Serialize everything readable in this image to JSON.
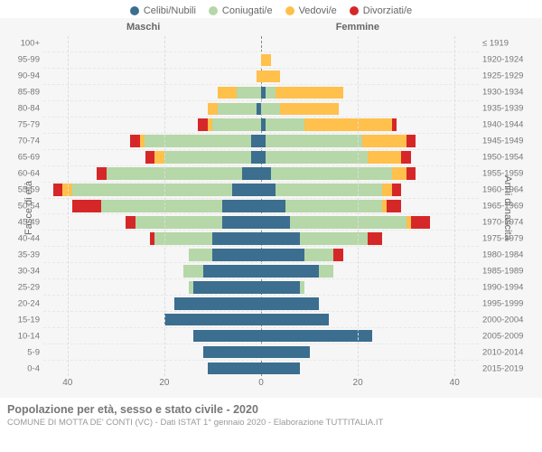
{
  "legend": [
    {
      "label": "Celibi/Nubili",
      "color": "#3b6e8f"
    },
    {
      "label": "Coniugati/e",
      "color": "#b6d7a8"
    },
    {
      "label": "Vedovi/e",
      "color": "#ffc04c"
    },
    {
      "label": "Divorziati/e",
      "color": "#d62728"
    }
  ],
  "side_titles": {
    "male": "Maschi",
    "female": "Femmine"
  },
  "axis_labels": {
    "left": "Fasce di età",
    "right": "Anni di nascita"
  },
  "x_axis": {
    "max": 45,
    "ticks": [
      40,
      20,
      0,
      20,
      40
    ]
  },
  "colors": {
    "background": "#f6f6f6",
    "grid": "#e8e8e8",
    "center_line": "#888",
    "text": "#777"
  },
  "bar_style": {
    "height_pct": 80
  },
  "rows": [
    {
      "age": "100+",
      "birth": "≤ 1919",
      "m": [
        0,
        0,
        0,
        0
      ],
      "f": [
        0,
        0,
        0,
        0
      ]
    },
    {
      "age": "95-99",
      "birth": "1920-1924",
      "m": [
        0,
        0,
        0,
        0
      ],
      "f": [
        0,
        0,
        2,
        0
      ]
    },
    {
      "age": "90-94",
      "birth": "1925-1929",
      "m": [
        0,
        0,
        1,
        0
      ],
      "f": [
        0,
        0,
        4,
        0
      ]
    },
    {
      "age": "85-89",
      "birth": "1930-1934",
      "m": [
        0,
        5,
        4,
        0
      ],
      "f": [
        1,
        2,
        14,
        0
      ]
    },
    {
      "age": "80-84",
      "birth": "1935-1939",
      "m": [
        1,
        8,
        2,
        0
      ],
      "f": [
        0,
        4,
        12,
        0
      ]
    },
    {
      "age": "75-79",
      "birth": "1940-1944",
      "m": [
        0,
        10,
        1,
        2
      ],
      "f": [
        1,
        8,
        18,
        1
      ]
    },
    {
      "age": "70-74",
      "birth": "1945-1949",
      "m": [
        2,
        22,
        1,
        2
      ],
      "f": [
        1,
        20,
        9,
        2
      ]
    },
    {
      "age": "65-69",
      "birth": "1950-1954",
      "m": [
        2,
        18,
        2,
        2
      ],
      "f": [
        1,
        21,
        7,
        2
      ]
    },
    {
      "age": "60-64",
      "birth": "1955-1959",
      "m": [
        4,
        28,
        0,
        2
      ],
      "f": [
        2,
        25,
        3,
        2
      ]
    },
    {
      "age": "55-59",
      "birth": "1960-1964",
      "m": [
        6,
        33,
        2,
        2
      ],
      "f": [
        3,
        22,
        2,
        2
      ]
    },
    {
      "age": "50-54",
      "birth": "1965-1969",
      "m": [
        8,
        25,
        0,
        6
      ],
      "f": [
        5,
        20,
        1,
        3
      ]
    },
    {
      "age": "45-49",
      "birth": "1970-1974",
      "m": [
        8,
        18,
        0,
        2
      ],
      "f": [
        6,
        24,
        1,
        4
      ]
    },
    {
      "age": "40-44",
      "birth": "1975-1979",
      "m": [
        10,
        12,
        0,
        1
      ],
      "f": [
        8,
        14,
        0,
        3
      ]
    },
    {
      "age": "35-39",
      "birth": "1980-1984",
      "m": [
        10,
        5,
        0,
        0
      ],
      "f": [
        9,
        6,
        0,
        2
      ]
    },
    {
      "age": "30-34",
      "birth": "1985-1989",
      "m": [
        12,
        4,
        0,
        0
      ],
      "f": [
        12,
        3,
        0,
        0
      ]
    },
    {
      "age": "25-29",
      "birth": "1990-1994",
      "m": [
        14,
        1,
        0,
        0
      ],
      "f": [
        8,
        1,
        0,
        0
      ]
    },
    {
      "age": "20-24",
      "birth": "1995-1999",
      "m": [
        18,
        0,
        0,
        0
      ],
      "f": [
        12,
        0,
        0,
        0
      ]
    },
    {
      "age": "15-19",
      "birth": "2000-2004",
      "m": [
        20,
        0,
        0,
        0
      ],
      "f": [
        14,
        0,
        0,
        0
      ]
    },
    {
      "age": "10-14",
      "birth": "2005-2009",
      "m": [
        14,
        0,
        0,
        0
      ],
      "f": [
        23,
        0,
        0,
        0
      ]
    },
    {
      "age": "5-9",
      "birth": "2010-2014",
      "m": [
        12,
        0,
        0,
        0
      ],
      "f": [
        10,
        0,
        0,
        0
      ]
    },
    {
      "age": "0-4",
      "birth": "2015-2019",
      "m": [
        11,
        0,
        0,
        0
      ],
      "f": [
        8,
        0,
        0,
        0
      ]
    }
  ],
  "footer": {
    "title": "Popolazione per età, sesso e stato civile - 2020",
    "subtitle": "COMUNE DI MOTTA DE' CONTI (VC) - Dati ISTAT 1° gennaio 2020 - Elaborazione TUTTITALIA.IT"
  }
}
